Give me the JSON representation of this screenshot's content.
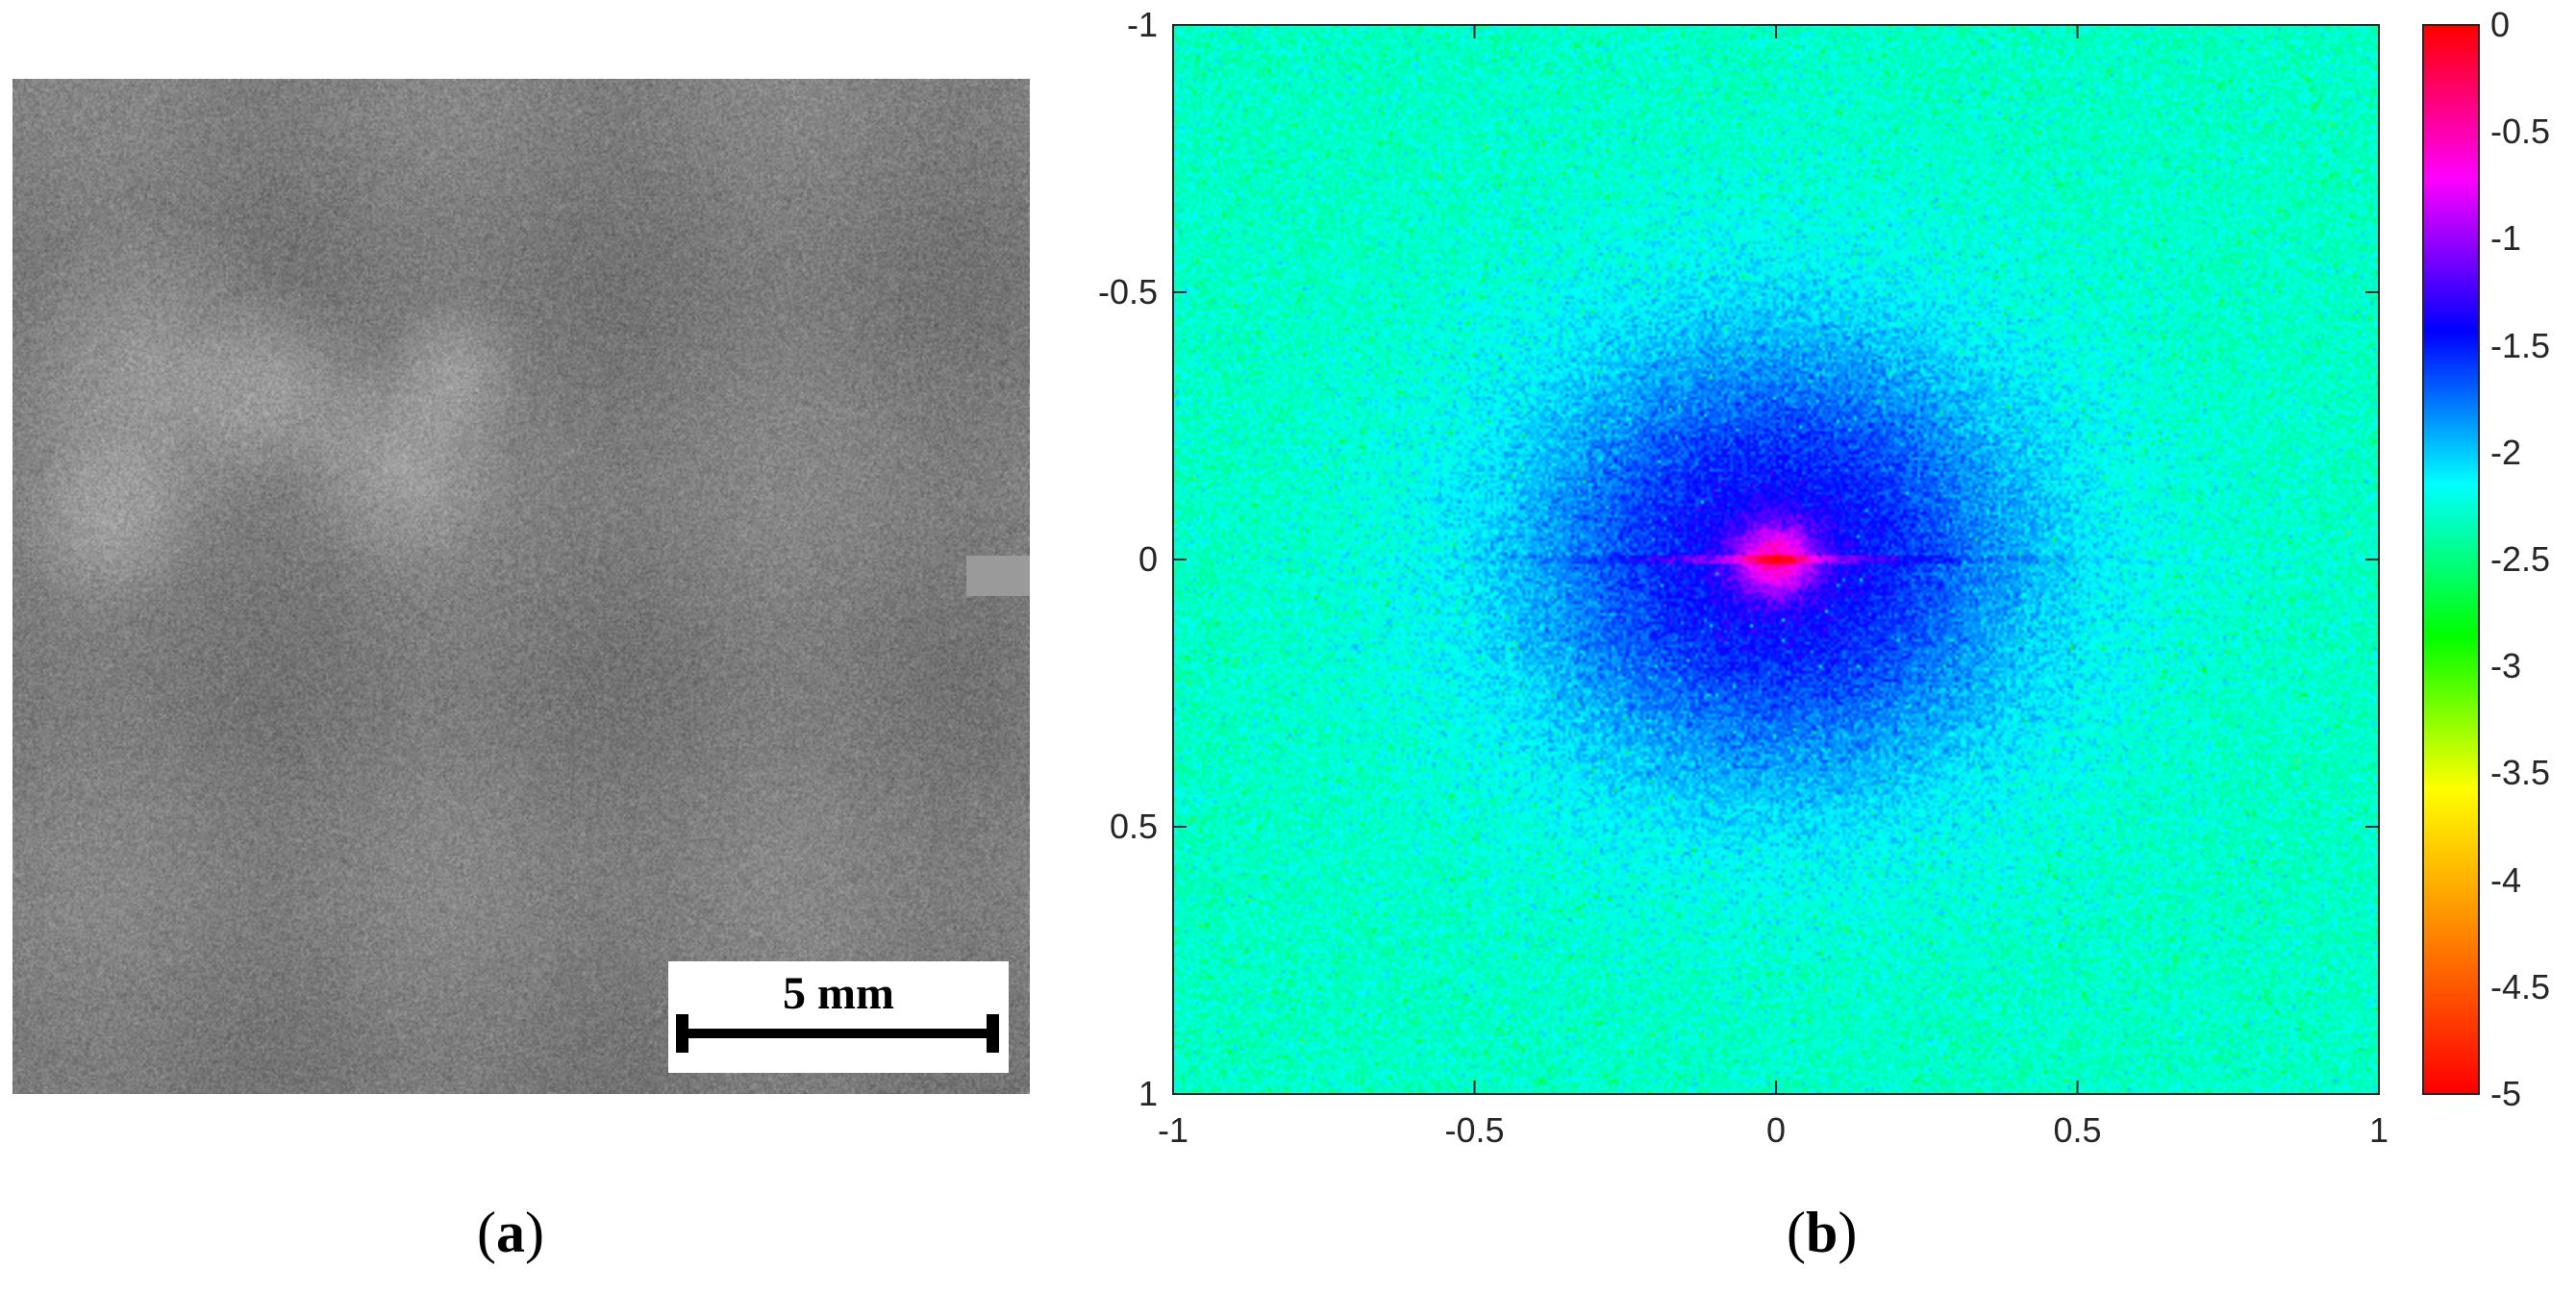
{
  "panel_a": {
    "label_open": "(",
    "label_letter": "a",
    "label_close": ")",
    "scale_bar_text": "5 mm"
  },
  "panel_b": {
    "label_open": "(",
    "label_letter": "b",
    "label_close": ")"
  },
  "chart_data": [
    {
      "type": "heatmap",
      "title": "",
      "xlabel": "",
      "ylabel": "",
      "xlim": [
        -1,
        1
      ],
      "ylim": [
        -1,
        1
      ],
      "y_axis_direction": "top-to-bottom (-1 at top)",
      "x_ticks": [
        "-1",
        "-0.5",
        "0",
        "0.5",
        "1"
      ],
      "y_ticks": [
        "-1",
        "-0.5",
        "0",
        "0.5",
        "1"
      ],
      "colorbar": {
        "range": [
          -5,
          0
        ],
        "ticks": [
          "0",
          "-0.5",
          "-1",
          "-1.5",
          "-2",
          "-2.5",
          "-3",
          "-3.5",
          "-4",
          "-4.5",
          "-5"
        ],
        "colormap": [
          "#ff0000",
          "#ff8000",
          "#ffff00",
          "#00ff00",
          "#00ffff",
          "#0000ff",
          "#ff00ff",
          "#ff0000"
        ]
      },
      "description_values": {
        "center": [
          0,
          0
        ],
        "center_value": 0,
        "background_value": -2.3
      },
      "grid": false
    }
  ]
}
